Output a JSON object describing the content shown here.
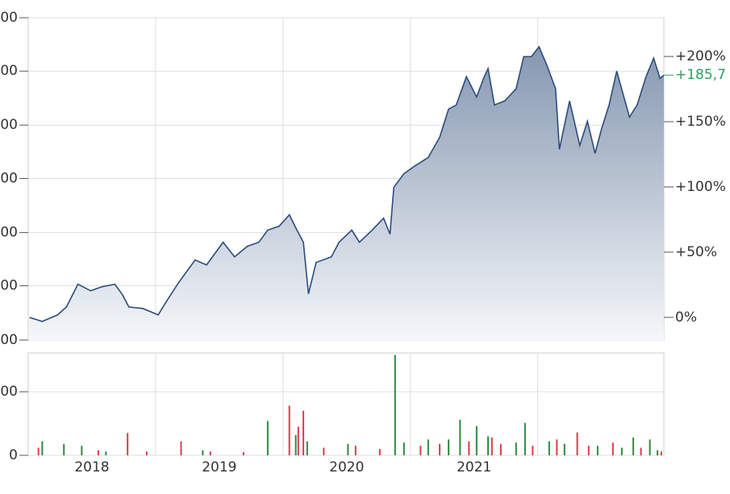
{
  "chart_data": [
    {
      "type": "area",
      "x": [
        2018.01,
        2018.11,
        2018.23,
        2018.3,
        2018.39,
        2018.49,
        2018.58,
        2018.68,
        2018.74,
        2018.79,
        2018.9,
        2019.02,
        2019.09,
        2019.18,
        2019.31,
        2019.4,
        2019.53,
        2019.62,
        2019.72,
        2019.81,
        2019.88,
        2019.97,
        2020.05,
        2020.1,
        2020.16,
        2020.2,
        2020.26,
        2020.38,
        2020.44,
        2020.54,
        2020.6,
        2020.7,
        2020.79,
        2020.84,
        2020.87,
        2020.95,
        2021.04,
        2021.14,
        2021.23,
        2021.3,
        2021.36,
        2021.44,
        2021.52,
        2021.58,
        2021.61,
        2021.66,
        2021.74,
        2021.83,
        2021.89,
        2021.95,
        2022.01,
        2022.07,
        2022.14,
        2022.17,
        2022.25,
        2022.33,
        2022.39,
        2022.45,
        2022.5,
        2022.56,
        2022.62,
        2022.72,
        2022.78,
        2022.85,
        2022.91,
        2022.96,
        2022.99
      ],
      "series": [
        {
          "color": "#2b4c7e",
          "values": [
            0,
            -3.1,
            1.9,
            8.0,
            25.4,
            20.4,
            23.5,
            25.4,
            17.3,
            8.0,
            6.8,
            1.9,
            13.0,
            26.6,
            44.0,
            40.2,
            57.6,
            46.4,
            54.5,
            57.6,
            66.9,
            69.9,
            78.6,
            68.7,
            57.6,
            18.0,
            42.1,
            46.4,
            57.6,
            66.9,
            57.6,
            66.9,
            76.1,
            63.8,
            99.7,
            110.2,
            116.4,
            122.6,
            138.0,
            159.7,
            162.8,
            184.5,
            169.0,
            184.5,
            190.7,
            162.8,
            165.9,
            175.2,
            199.9,
            199.9,
            207.4,
            193.7,
            175.2,
            128.8,
            165.9,
            131.8,
            150.4,
            125.7,
            144.2,
            162.8,
            188.8,
            153.5,
            162.8,
            184.5,
            198.7,
            183.2,
            185.7
          ]
        }
      ],
      "xlim": [
        2018.0,
        2022.99
      ],
      "xgrid": [
        2019,
        2020,
        2021,
        2022
      ],
      "ylim": [
        -17.4,
        229.7
      ],
      "yticks": [
        {
          "value": 229.7,
          "label": "00"
        },
        {
          "value": 188.8,
          "label": "00"
        },
        {
          "value": 147.4,
          "label": "00"
        },
        {
          "value": 106.5,
          "label": "00"
        },
        {
          "value": 65,
          "label": "00"
        },
        {
          "value": 24.2,
          "label": "00"
        },
        {
          "value": -17.4,
          "label": "00"
        }
      ],
      "y2lim": [
        -17.4,
        229.7
      ],
      "y2ticks": [
        {
          "value": 0,
          "label": "0%"
        },
        {
          "value": 50,
          "label": "+50%"
        },
        {
          "value": 100,
          "label": "+100%"
        },
        {
          "value": 150,
          "label": "+150%"
        },
        {
          "value": 200,
          "label": "+200%"
        }
      ],
      "last_value": {
        "value": 185.7,
        "label": "+185,7",
        "color": "#2e9e5e"
      }
    },
    {
      "type": "bar",
      "xlim": [
        2018.0,
        2022.99
      ],
      "xgrid": [
        2019,
        2020,
        2021,
        2022
      ],
      "xticks": [
        {
          "value": 2018.5,
          "label": "2018"
        },
        {
          "value": 2019.5,
          "label": "2019"
        },
        {
          "value": 2020.5,
          "label": "2020"
        },
        {
          "value": 2021.5,
          "label": "2021"
        }
      ],
      "ylim": [
        0,
        161
      ],
      "yticks": [
        0,
        {
          "value": 100,
          "label": "00"
        }
      ],
      "series": [
        {
          "color": "#2e8b3e",
          "x": [
            2018.11,
            2018.28,
            2018.42,
            2018.61,
            2019.37,
            2019.88,
            2020.1,
            2020.19,
            2020.51,
            2020.88,
            2020.95,
            2021.14,
            2021.3,
            2021.39,
            2021.52,
            2021.61,
            2021.83,
            2021.9,
            2022.09,
            2022.21,
            2022.47,
            2022.66,
            2022.75,
            2022.88,
            2022.94
          ],
          "values": [
            22,
            18,
            15,
            6,
            8,
            54,
            32,
            22,
            18,
            158,
            20,
            25,
            25,
            56,
            46,
            30,
            20,
            51,
            22,
            18,
            15,
            12,
            28,
            25,
            8
          ]
        },
        {
          "color": "#e03a4a",
          "x": [
            2018.08,
            2018.55,
            2018.78,
            2018.93,
            2019.2,
            2019.43,
            2019.69,
            2020.05,
            2020.12,
            2020.16,
            2020.32,
            2020.57,
            2020.76,
            2021.08,
            2021.23,
            2021.46,
            2021.64,
            2021.71,
            2021.96,
            2022.15,
            2022.31,
            2022.4,
            2022.59,
            2022.81,
            2022.97
          ],
          "values": [
            12,
            8,
            35,
            6,
            22,
            6,
            5,
            78,
            45,
            70,
            12,
            15,
            10,
            15,
            18,
            22,
            28,
            18,
            15,
            25,
            36,
            15,
            20,
            12,
            6
          ]
        }
      ]
    }
  ]
}
